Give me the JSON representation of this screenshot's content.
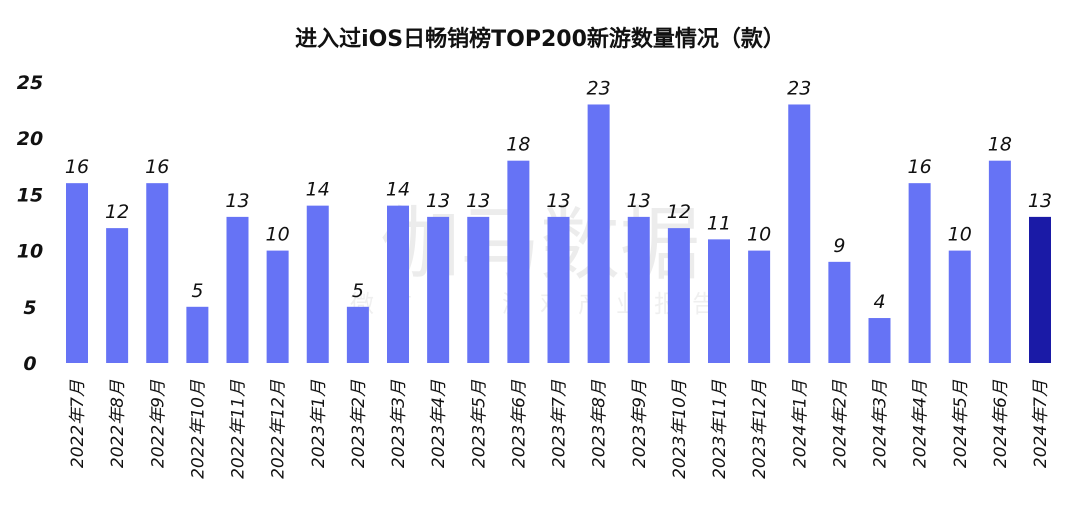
{
  "chart_data": {
    "type": "bar",
    "title": "进入过iOS日畅销榜TOP200新游数量情况（款）",
    "xlabel": "",
    "ylabel": "",
    "ylim": [
      0,
      25
    ],
    "yticks": [
      0,
      5,
      10,
      15,
      20,
      25
    ],
    "grid": false,
    "categories": [
      "2022年7月",
      "2022年8月",
      "2022年9月",
      "2022年10月",
      "2022年11月",
      "2022年12月",
      "2023年1月",
      "2023年2月",
      "2023年3月",
      "2023年4月",
      "2023年5月",
      "2023年6月",
      "2023年7月",
      "2023年8月",
      "2023年9月",
      "2023年10月",
      "2023年11月",
      "2023年12月",
      "2024年1月",
      "2024年2月",
      "2024年3月",
      "2024年4月",
      "2024年5月",
      "2024年6月",
      "2024年7月"
    ],
    "values": [
      16,
      12,
      16,
      5,
      13,
      10,
      14,
      5,
      14,
      13,
      13,
      18,
      13,
      23,
      13,
      12,
      11,
      10,
      23,
      9,
      4,
      16,
      10,
      18,
      13
    ],
    "colors": {
      "bar": "#6673f5",
      "highlight": "#1a1aa6"
    },
    "highlight_index": 24
  },
  "watermark": {
    "main": "伽马数据",
    "sub": "微信号：游戏产业报告"
  }
}
